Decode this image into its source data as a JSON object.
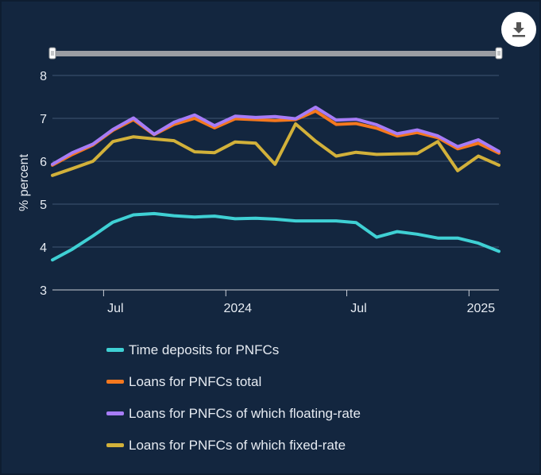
{
  "toolbar": {
    "download_icon": "download-icon"
  },
  "navigator": {
    "range": [
      0,
      1
    ]
  },
  "chart_data": {
    "type": "line",
    "ylabel": "% percent",
    "xlabel": "",
    "ylim": [
      3,
      8
    ],
    "yticks": [
      3,
      4,
      5,
      6,
      7,
      8
    ],
    "xlim": [
      "2023-04-15",
      "2025-02-15"
    ],
    "xticks": [
      {
        "date": "2023-07-01",
        "label": "Jul"
      },
      {
        "date": "2024-01-01",
        "label": "2024"
      },
      {
        "date": "2024-07-01",
        "label": "Jul"
      },
      {
        "date": "2025-01-01",
        "label": "2025"
      }
    ],
    "grid": true,
    "legend_position": "bottom",
    "x": [
      "2023-04-15",
      "2023-05-15",
      "2023-06-15",
      "2023-07-15",
      "2023-08-15",
      "2023-09-15",
      "2023-10-15",
      "2023-11-15",
      "2023-12-15",
      "2024-01-15",
      "2024-02-15",
      "2024-03-15",
      "2024-04-15",
      "2024-05-15",
      "2024-06-15",
      "2024-07-15",
      "2024-08-15",
      "2024-09-15",
      "2024-10-15",
      "2024-11-15",
      "2024-12-15",
      "2025-01-15",
      "2025-02-15"
    ],
    "series": [
      {
        "name": "Time deposits for PNFCs",
        "color": "#3fd0d4",
        "values": [
          3.7,
          3.95,
          4.26,
          4.58,
          4.75,
          4.78,
          4.73,
          4.7,
          4.72,
          4.66,
          4.67,
          4.65,
          4.61,
          4.61,
          4.61,
          4.57,
          4.23,
          4.36,
          4.3,
          4.21,
          4.21,
          4.09,
          3.9
        ]
      },
      {
        "name": "Loans for PNFCs total",
        "color": "#f5781e",
        "values": [
          5.91,
          6.16,
          6.38,
          6.72,
          6.97,
          6.62,
          6.86,
          7.0,
          6.78,
          6.99,
          6.97,
          6.95,
          6.97,
          7.17,
          6.86,
          6.88,
          6.77,
          6.59,
          6.67,
          6.55,
          6.29,
          6.42,
          6.19
        ]
      },
      {
        "name": "Loans for PNFCs of which floating-rate",
        "color": "#a77cf7",
        "values": [
          5.93,
          6.2,
          6.4,
          6.74,
          7.01,
          6.63,
          6.91,
          7.08,
          6.83,
          7.05,
          7.02,
          7.04,
          6.99,
          7.26,
          6.96,
          6.98,
          6.85,
          6.64,
          6.73,
          6.59,
          6.34,
          6.5,
          6.23
        ]
      },
      {
        "name": "Loans for PNFCs of which fixed-rate",
        "color": "#d2b13a",
        "values": [
          5.67,
          5.83,
          6.0,
          6.46,
          6.57,
          6.52,
          6.48,
          6.22,
          6.2,
          6.45,
          6.42,
          5.93,
          6.87,
          6.47,
          6.12,
          6.21,
          6.16,
          6.17,
          6.18,
          6.46,
          5.78,
          6.12,
          5.91
        ]
      }
    ]
  }
}
